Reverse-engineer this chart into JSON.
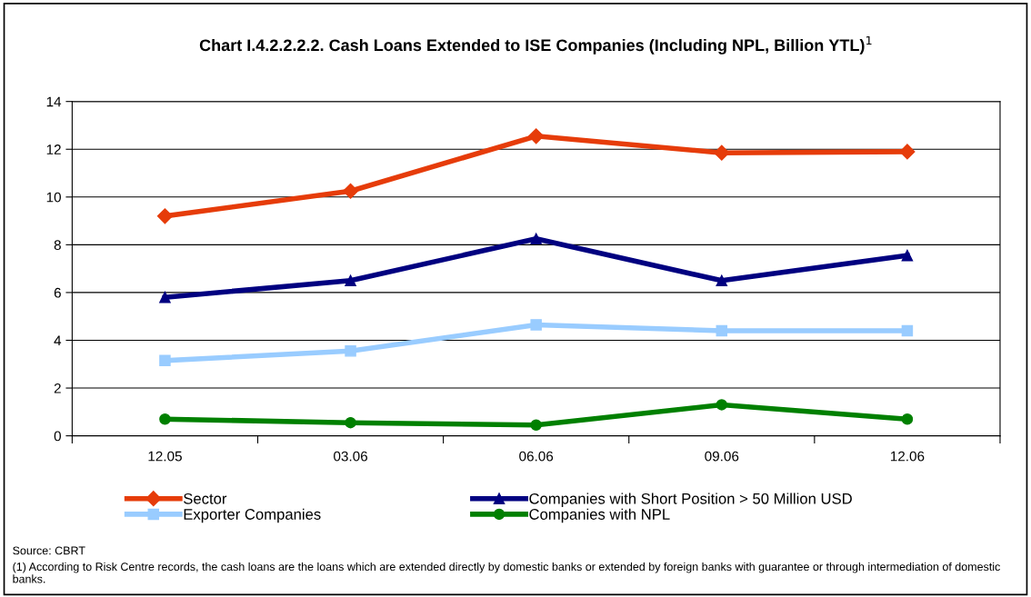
{
  "chart_data": {
    "type": "line",
    "title": "Chart I.4.2.2.2.2. Cash Loans Extended to ISE Companies (Including NPL, Billion YTL)$^{1}$",
    "categories": [
      "12.05",
      "03.06",
      "06.06",
      "09.06",
      "12.06"
    ],
    "series": [
      {
        "name": "Sector",
        "color": "#e63c0a",
        "marker": "diamond",
        "values": [
          9.2,
          10.25,
          12.55,
          11.85,
          11.9
        ]
      },
      {
        "name": "Exporter Companies",
        "color": "#99ccff",
        "marker": "square",
        "values": [
          3.15,
          3.55,
          4.65,
          4.4,
          4.4
        ]
      },
      {
        "name": "Companies with Short Position > 50 Million USD",
        "color": "#000080",
        "marker": "triangle",
        "values": [
          5.8,
          6.5,
          8.25,
          6.5,
          7.55
        ]
      },
      {
        "name": "Companies with NPL",
        "color": "#008000",
        "marker": "circle",
        "values": [
          0.7,
          0.55,
          0.45,
          1.3,
          0.7
        ]
      }
    ],
    "ylim": [
      0,
      14
    ],
    "yticks": [
      0,
      2,
      4,
      6,
      8,
      10,
      12,
      14
    ],
    "grid": "y",
    "legend": "bottom",
    "line_style": "solid",
    "annotations": [
      "Source: CBRT",
      "(1) According to Risk Centre records, the cash loans are the loans which are extended directly by domestic banks or extended by foreign banks with guarantee or through intermediation of domestic banks."
    ]
  }
}
